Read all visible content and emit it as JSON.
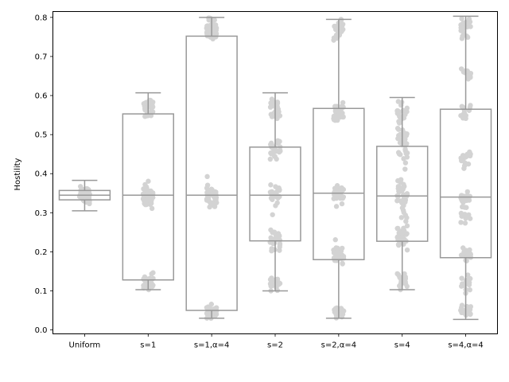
{
  "chart_data": {
    "type": "box",
    "title": "",
    "xlabel": "",
    "ylabel": "Hostility",
    "ylim": [
      -0.01,
      0.815
    ],
    "yticks": [
      0.0,
      0.1,
      0.2,
      0.3,
      0.4,
      0.5,
      0.6,
      0.7,
      0.8
    ],
    "ytick_labels": [
      "0.0",
      "0.1",
      "0.2",
      "0.3",
      "0.4",
      "0.5",
      "0.6",
      "0.7",
      "0.8"
    ],
    "grid": false,
    "categories": [
      "Uniform",
      "s=1",
      "s=1,α=4",
      "s=2",
      "s=2,α=4",
      "s=4",
      "s=4,α=4"
    ],
    "box_stats": [
      {
        "min": 0.305,
        "q1": 0.333,
        "median": 0.345,
        "q3": 0.357,
        "max": 0.383
      },
      {
        "min": 0.103,
        "q1": 0.128,
        "median": 0.345,
        "q3": 0.553,
        "max": 0.607
      },
      {
        "min": 0.03,
        "q1": 0.05,
        "median": 0.345,
        "q3": 0.752,
        "max": 0.8
      },
      {
        "min": 0.1,
        "q1": 0.228,
        "median": 0.345,
        "q3": 0.468,
        "max": 0.607
      },
      {
        "min": 0.03,
        "q1": 0.18,
        "median": 0.35,
        "q3": 0.567,
        "max": 0.795
      },
      {
        "min": 0.103,
        "q1": 0.227,
        "median": 0.343,
        "q3": 0.47,
        "max": 0.595
      },
      {
        "min": 0.027,
        "q1": 0.185,
        "median": 0.34,
        "q3": 0.565,
        "max": 0.803
      }
    ],
    "point_clusters": [
      [
        {
          "center": 0.345,
          "spread": 0.022,
          "n": 80
        }
      ],
      [
        {
          "center": 0.12,
          "spread": 0.02,
          "n": 45
        },
        {
          "center": 0.345,
          "spread": 0.028,
          "n": 45
        },
        {
          "center": 0.565,
          "spread": 0.03,
          "n": 35
        }
      ],
      [
        {
          "center": 0.045,
          "spread": 0.014,
          "n": 45
        },
        {
          "center": 0.345,
          "spread": 0.025,
          "n": 45
        },
        {
          "center": 0.77,
          "spread": 0.028,
          "n": 45
        }
      ],
      [
        {
          "center": 0.12,
          "spread": 0.02,
          "n": 25
        },
        {
          "center": 0.23,
          "spread": 0.025,
          "n": 25
        },
        {
          "center": 0.345,
          "spread": 0.03,
          "n": 25
        },
        {
          "center": 0.46,
          "spread": 0.025,
          "n": 25
        },
        {
          "center": 0.565,
          "spread": 0.03,
          "n": 25
        }
      ],
      [
        {
          "center": 0.045,
          "spread": 0.014,
          "n": 25
        },
        {
          "center": 0.19,
          "spread": 0.025,
          "n": 30
        },
        {
          "center": 0.345,
          "spread": 0.03,
          "n": 30
        },
        {
          "center": 0.55,
          "spread": 0.03,
          "n": 30
        },
        {
          "center": 0.77,
          "spread": 0.025,
          "n": 30
        }
      ],
      [
        {
          "center": 0.13,
          "spread": 0.025,
          "n": 22
        },
        {
          "center": 0.24,
          "spread": 0.04,
          "n": 35
        },
        {
          "center": 0.345,
          "spread": 0.05,
          "n": 40
        },
        {
          "center": 0.47,
          "spread": 0.05,
          "n": 35
        },
        {
          "center": 0.55,
          "spread": 0.035,
          "n": 20
        }
      ],
      [
        {
          "center": 0.045,
          "spread": 0.015,
          "n": 18
        },
        {
          "center": 0.12,
          "spread": 0.025,
          "n": 18
        },
        {
          "center": 0.195,
          "spread": 0.02,
          "n": 18
        },
        {
          "center": 0.29,
          "spread": 0.03,
          "n": 14
        },
        {
          "center": 0.34,
          "spread": 0.02,
          "n": 18
        },
        {
          "center": 0.44,
          "spread": 0.025,
          "n": 14
        },
        {
          "center": 0.56,
          "spread": 0.025,
          "n": 14
        },
        {
          "center": 0.655,
          "spread": 0.02,
          "n": 12
        },
        {
          "center": 0.77,
          "spread": 0.03,
          "n": 18
        }
      ]
    ],
    "colors": {
      "box_edge": "#999999",
      "points": "#d3d3d3",
      "axis": "#000000"
    }
  }
}
